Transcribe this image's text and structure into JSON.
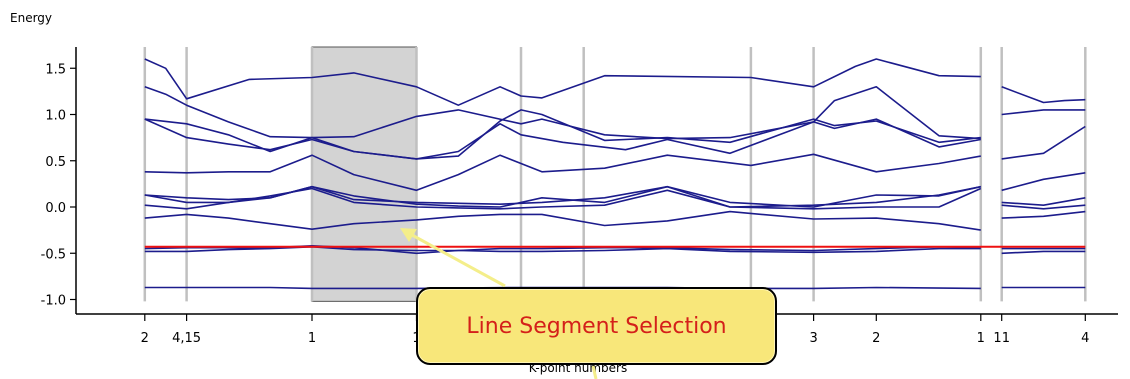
{
  "chart_data": {
    "type": "line",
    "ylabel": "Energy",
    "xlabel": "K-point numbers",
    "y_ticks": [
      1.5,
      1.0,
      0.5,
      0.0,
      -0.5,
      -1.0
    ],
    "y_tick_labels": [
      "1.5",
      "1.0",
      "0.5",
      "0.0",
      "-0.5",
      "-1.0"
    ],
    "ylim": [
      -1.02,
      1.72
    ],
    "xlim": [
      0,
      47
    ],
    "kpoint_lines": [
      2,
      4,
      10,
      15,
      20,
      23,
      31,
      34,
      42,
      43,
      47
    ],
    "x_tick_labels": [
      {
        "x": 2,
        "label": "2"
      },
      {
        "x": 4,
        "label": "4,15"
      },
      {
        "x": 10,
        "label": "1"
      },
      {
        "x": 15,
        "label": "1"
      },
      {
        "x": 34,
        "label": "3"
      },
      {
        "x": 37,
        "label": "2"
      },
      {
        "x": 42,
        "label": "1"
      },
      {
        "x": 43,
        "label": "11"
      },
      {
        "x": 47,
        "label": "4"
      }
    ],
    "selection": {
      "x_start": 10,
      "x_end": 15
    },
    "fermi_level": -0.43,
    "series": [
      {
        "points": [
          [
            2,
            1.6
          ],
          [
            3,
            1.5
          ],
          [
            4,
            1.17
          ],
          [
            7,
            1.38
          ],
          [
            10,
            1.4
          ],
          [
            12,
            1.45
          ],
          [
            15,
            1.3
          ],
          [
            17,
            1.1
          ],
          [
            19,
            1.3
          ],
          [
            20,
            1.2
          ],
          [
            21,
            1.18
          ],
          [
            24,
            1.42
          ],
          [
            31,
            1.4
          ],
          [
            34,
            1.3
          ],
          [
            36,
            1.52
          ],
          [
            37,
            1.6
          ],
          [
            40,
            1.42
          ],
          [
            42,
            1.41
          ]
        ]
      },
      {
        "points": [
          [
            2,
            1.3
          ],
          [
            3,
            1.22
          ],
          [
            4,
            1.1
          ],
          [
            6,
            0.92
          ],
          [
            8,
            0.76
          ],
          [
            10,
            0.75
          ],
          [
            12,
            0.76
          ],
          [
            15,
            0.98
          ],
          [
            17,
            1.05
          ],
          [
            20,
            0.9
          ],
          [
            21,
            0.95
          ],
          [
            24,
            0.78
          ],
          [
            27,
            0.74
          ],
          [
            30,
            0.75
          ],
          [
            34,
            0.92
          ],
          [
            35,
            1.15
          ],
          [
            37,
            1.3
          ],
          [
            40,
            0.77
          ],
          [
            42,
            0.74
          ]
        ]
      },
      {
        "points": [
          [
            2,
            0.95
          ],
          [
            4,
            0.9
          ],
          [
            6,
            0.78
          ],
          [
            8,
            0.6
          ],
          [
            10,
            0.75
          ],
          [
            12,
            0.6
          ],
          [
            15,
            0.52
          ],
          [
            17,
            0.55
          ],
          [
            19,
            0.93
          ],
          [
            20,
            1.05
          ],
          [
            21,
            1.0
          ],
          [
            24,
            0.72
          ],
          [
            27,
            0.75
          ],
          [
            30,
            0.7
          ],
          [
            34,
            0.95
          ],
          [
            35,
            0.88
          ],
          [
            37,
            0.93
          ],
          [
            40,
            0.7
          ],
          [
            42,
            0.75
          ]
        ]
      },
      {
        "points": [
          [
            2,
            0.95
          ],
          [
            4,
            0.75
          ],
          [
            6,
            0.68
          ],
          [
            8,
            0.62
          ],
          [
            10,
            0.73
          ],
          [
            12,
            0.6
          ],
          [
            15,
            0.52
          ],
          [
            17,
            0.6
          ],
          [
            19,
            0.9
          ],
          [
            20,
            0.78
          ],
          [
            22,
            0.7
          ],
          [
            25,
            0.62
          ],
          [
            27,
            0.73
          ],
          [
            30,
            0.58
          ],
          [
            34,
            0.92
          ],
          [
            35,
            0.85
          ],
          [
            37,
            0.95
          ],
          [
            40,
            0.65
          ],
          [
            42,
            0.73
          ]
        ]
      },
      {
        "points": [
          [
            2,
            0.38
          ],
          [
            4,
            0.37
          ],
          [
            6,
            0.38
          ],
          [
            8,
            0.38
          ],
          [
            10,
            0.56
          ],
          [
            12,
            0.35
          ],
          [
            15,
            0.18
          ],
          [
            17,
            0.35
          ],
          [
            19,
            0.56
          ],
          [
            21,
            0.38
          ],
          [
            24,
            0.42
          ],
          [
            27,
            0.56
          ],
          [
            31,
            0.45
          ],
          [
            34,
            0.57
          ],
          [
            37,
            0.38
          ],
          [
            40,
            0.47
          ],
          [
            42,
            0.55
          ]
        ]
      },
      {
        "points": [
          [
            2,
            0.13
          ],
          [
            4,
            0.1
          ],
          [
            6,
            0.08
          ],
          [
            8,
            0.1
          ],
          [
            10,
            0.22
          ],
          [
            12,
            0.08
          ],
          [
            15,
            0.05
          ],
          [
            17,
            0.04
          ],
          [
            19,
            0.03
          ],
          [
            21,
            0.05
          ],
          [
            24,
            0.1
          ],
          [
            27,
            0.22
          ],
          [
            30,
            0.05
          ],
          [
            34,
            0.0
          ],
          [
            37,
            0.13
          ],
          [
            40,
            0.12
          ],
          [
            42,
            0.22
          ]
        ]
      },
      {
        "points": [
          [
            2,
            0.13
          ],
          [
            4,
            0.05
          ],
          [
            6,
            0.05
          ],
          [
            8,
            0.1
          ],
          [
            10,
            0.22
          ],
          [
            12,
            0.12
          ],
          [
            15,
            0.03
          ],
          [
            17,
            0.01
          ],
          [
            19,
            0.0
          ],
          [
            21,
            0.1
          ],
          [
            24,
            0.05
          ],
          [
            27,
            0.22
          ],
          [
            30,
            0.0
          ],
          [
            34,
            0.02
          ],
          [
            37,
            0.05
          ],
          [
            40,
            0.13
          ],
          [
            42,
            0.22
          ]
        ]
      },
      {
        "points": [
          [
            2,
            0.02
          ],
          [
            4,
            -0.02
          ],
          [
            6,
            0.05
          ],
          [
            8,
            0.12
          ],
          [
            10,
            0.2
          ],
          [
            12,
            0.05
          ],
          [
            15,
            0.0
          ],
          [
            17,
            -0.01
          ],
          [
            19,
            -0.02
          ],
          [
            21,
            0.0
          ],
          [
            24,
            0.02
          ],
          [
            27,
            0.18
          ],
          [
            30,
            0.0
          ],
          [
            34,
            -0.02
          ],
          [
            37,
            0.0
          ],
          [
            40,
            0.0
          ],
          [
            42,
            0.2
          ]
        ]
      },
      {
        "points": [
          [
            2,
            -0.12
          ],
          [
            4,
            -0.08
          ],
          [
            6,
            -0.12
          ],
          [
            8,
            -0.18
          ],
          [
            10,
            -0.24
          ],
          [
            12,
            -0.18
          ],
          [
            15,
            -0.14
          ],
          [
            17,
            -0.1
          ],
          [
            19,
            -0.08
          ],
          [
            21,
            -0.08
          ],
          [
            24,
            -0.2
          ],
          [
            27,
            -0.15
          ],
          [
            30,
            -0.05
          ],
          [
            34,
            -0.13
          ],
          [
            37,
            -0.12
          ],
          [
            40,
            -0.18
          ],
          [
            42,
            -0.25
          ]
        ]
      },
      {
        "points": [
          [
            2,
            -0.45
          ],
          [
            4,
            -0.44
          ],
          [
            6,
            -0.44
          ],
          [
            8,
            -0.44
          ],
          [
            10,
            -0.42
          ],
          [
            12,
            -0.44
          ],
          [
            15,
            -0.5
          ],
          [
            17,
            -0.47
          ],
          [
            19,
            -0.45
          ],
          [
            21,
            -0.45
          ],
          [
            24,
            -0.44
          ],
          [
            27,
            -0.44
          ],
          [
            30,
            -0.46
          ],
          [
            34,
            -0.47
          ],
          [
            37,
            -0.45
          ],
          [
            40,
            -0.43
          ],
          [
            42,
            -0.44
          ]
        ]
      },
      {
        "points": [
          [
            2,
            -0.48
          ],
          [
            4,
            -0.48
          ],
          [
            6,
            -0.46
          ],
          [
            8,
            -0.45
          ],
          [
            10,
            -0.43
          ],
          [
            12,
            -0.46
          ],
          [
            15,
            -0.47
          ],
          [
            17,
            -0.47
          ],
          [
            19,
            -0.48
          ],
          [
            21,
            -0.48
          ],
          [
            24,
            -0.47
          ],
          [
            27,
            -0.45
          ],
          [
            30,
            -0.48
          ],
          [
            34,
            -0.49
          ],
          [
            37,
            -0.48
          ],
          [
            40,
            -0.45
          ],
          [
            42,
            -0.45
          ]
        ]
      },
      {
        "points": [
          [
            2,
            -0.87
          ],
          [
            4,
            -0.87
          ],
          [
            8,
            -0.87
          ],
          [
            10,
            -0.88
          ],
          [
            15,
            -0.88
          ],
          [
            20,
            -0.87
          ],
          [
            27,
            -0.87
          ],
          [
            30,
            -0.88
          ],
          [
            34,
            -0.88
          ],
          [
            37,
            -0.87
          ],
          [
            42,
            -0.88
          ]
        ]
      },
      {
        "points": [
          [
            43,
            1.3
          ],
          [
            45,
            1.13
          ],
          [
            46,
            1.15
          ],
          [
            47,
            1.16
          ]
        ]
      },
      {
        "points": [
          [
            43,
            1.0
          ],
          [
            45,
            1.05
          ],
          [
            47,
            1.05
          ]
        ]
      },
      {
        "points": [
          [
            43,
            0.52
          ],
          [
            45,
            0.58
          ],
          [
            47,
            0.87
          ]
        ]
      },
      {
        "points": [
          [
            43,
            0.18
          ],
          [
            45,
            0.3
          ],
          [
            47,
            0.37
          ]
        ]
      },
      {
        "points": [
          [
            43,
            0.05
          ],
          [
            45,
            0.02
          ],
          [
            47,
            0.1
          ]
        ]
      },
      {
        "points": [
          [
            43,
            0.02
          ],
          [
            45,
            -0.02
          ],
          [
            47,
            0.02
          ]
        ]
      },
      {
        "points": [
          [
            43,
            -0.12
          ],
          [
            45,
            -0.1
          ],
          [
            47,
            -0.05
          ]
        ]
      },
      {
        "points": [
          [
            43,
            -0.45
          ],
          [
            45,
            -0.45
          ],
          [
            47,
            -0.45
          ]
        ]
      },
      {
        "points": [
          [
            43,
            -0.5
          ],
          [
            45,
            -0.48
          ],
          [
            47,
            -0.48
          ]
        ]
      },
      {
        "points": [
          [
            43,
            -0.87
          ],
          [
            45,
            -0.87
          ],
          [
            47,
            -0.87
          ]
        ]
      }
    ],
    "colors": {
      "series": "#1c1c8c",
      "fermi": "#ee1111",
      "kpoint_line": "#c0c0c0",
      "selection": "#d3d3d3",
      "callout_text": "#d4201a",
      "callout_bg": "#f8e77a",
      "arrow": "#f4ee8a"
    }
  },
  "callout": {
    "text": "Line Segment Selection"
  }
}
